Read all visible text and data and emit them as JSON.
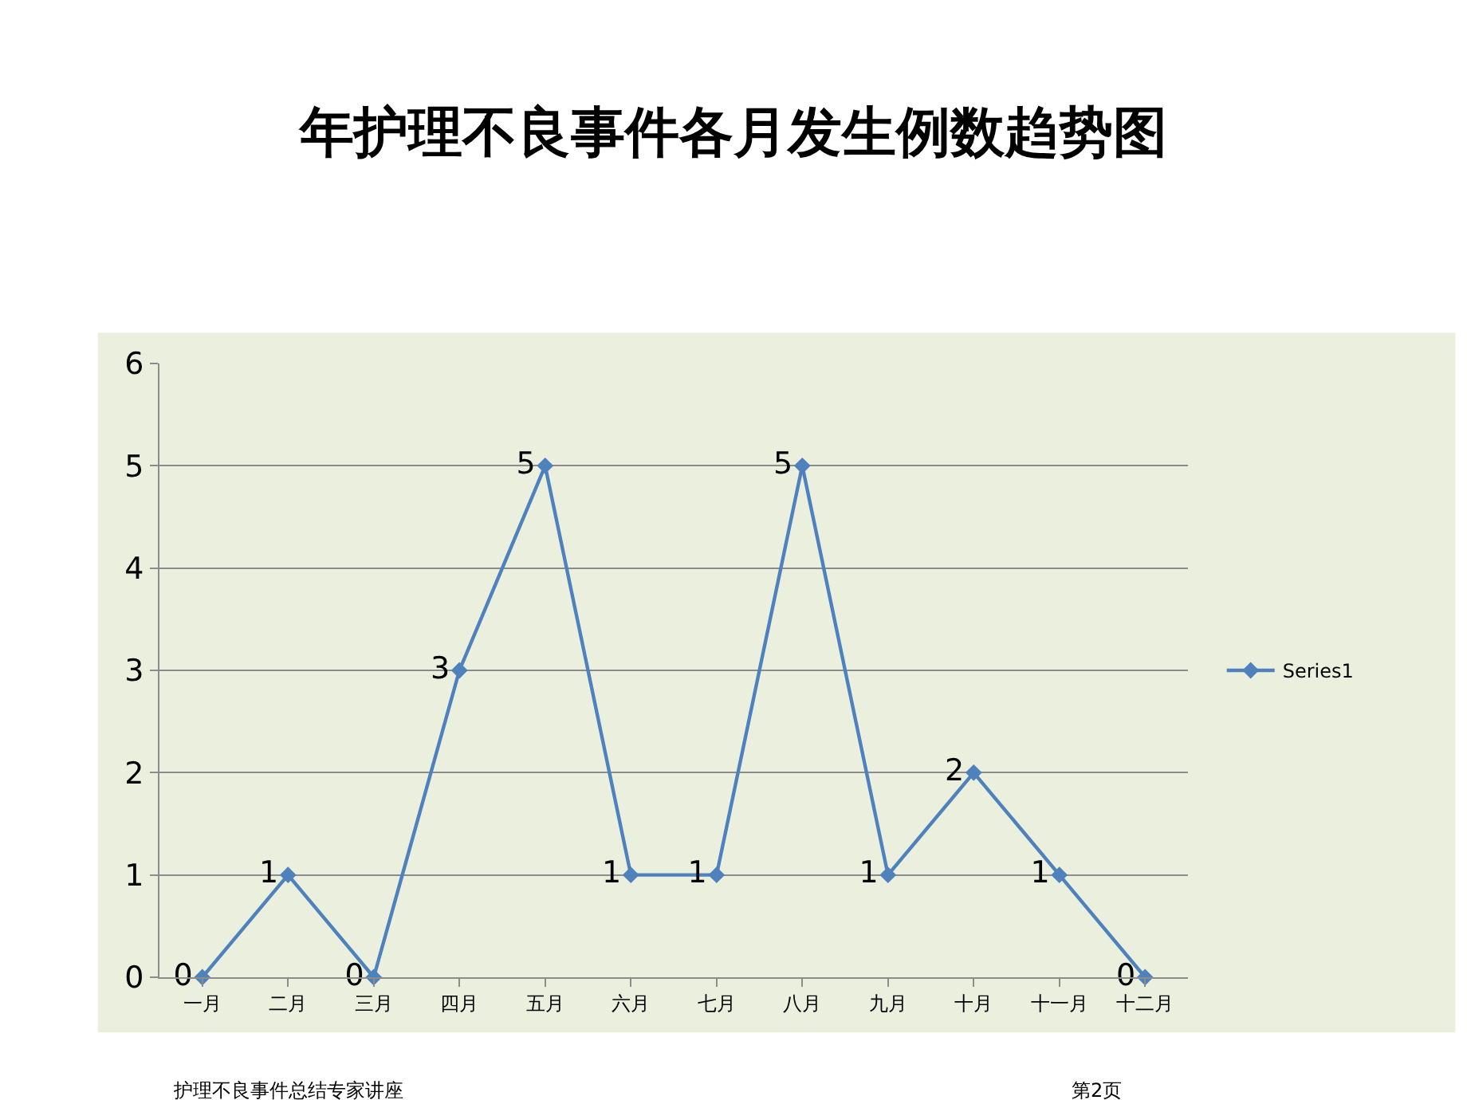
{
  "chart_data": {
    "type": "line",
    "title": "年护理不良事件各月发生例数趋势图",
    "categories": [
      "一月",
      "二月",
      "三月",
      "四月",
      "五月",
      "六月",
      "七月",
      "八月",
      "九月",
      "十月",
      "十一月",
      "十二月"
    ],
    "series": [
      {
        "name": "Series1",
        "color": "#4f81bd",
        "values": [
          0,
          1,
          0,
          3,
          5,
          1,
          1,
          5,
          1,
          2,
          1,
          0
        ]
      }
    ],
    "ylim": [
      0,
      6
    ],
    "yticks": [
      0,
      1,
      2,
      3,
      4,
      5,
      6
    ],
    "grid": "y",
    "legend": "right",
    "marker": "diamond",
    "line_style": "solid",
    "data_labels": true,
    "annotations": [
      "护理不良事件总结专家讲座",
      "第2页"
    ]
  }
}
